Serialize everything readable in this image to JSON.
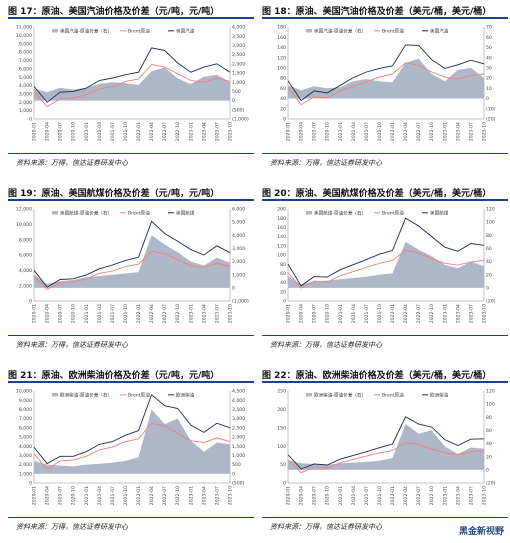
{
  "watermark": "黑金新视野",
  "colors": {
    "spread": "#aeb6c8",
    "brent": "#f08080",
    "product": "#1a2b4a"
  },
  "charts": [
    {
      "title": "图 17：原油、美国汽油价格及价差（元/吨，元/吨）",
      "source": "资料来源：万得，信达证券研发中心",
      "legend": [
        "美国汽油-原油价差（右）",
        "Brent原油",
        "美国汽油"
      ],
      "left_ticks": [
        "0",
        "1,000",
        "2,000",
        "3,000",
        "4,000",
        "5,000",
        "6,000",
        "7,000",
        "8,000",
        "9,000",
        "10,000",
        "11,000"
      ],
      "right_ticks": [
        "(1,000)",
        "(500)",
        "0",
        "500",
        "1,000",
        "1,500",
        "2,000",
        "2,500",
        "3,000",
        "3,500",
        "4,000"
      ],
      "x_ticks": [
        "2020-01",
        "2020-04",
        "2020-07",
        "2020-10",
        "2021-01",
        "2021-04",
        "2021-07",
        "2021-10",
        "2022-01",
        "2022-04",
        "2022-07",
        "2022-10",
        "2023-01",
        "2023-04",
        "2023-07",
        "2023-10"
      ]
    },
    {
      "title": "图 18：原油、美国汽油价格及价差（美元/桶，美元/桶）",
      "source": "资料来源：万得，信达证券研发中心",
      "legend": [
        "美国汽油-原油价差（右）",
        "Brent原油",
        "美国汽油"
      ],
      "left_ticks": [
        "0",
        "20",
        "40",
        "60",
        "80",
        "100",
        "120",
        "140",
        "160",
        "180"
      ],
      "right_ticks": [
        "(20)",
        "(10)",
        "0",
        "10",
        "20",
        "30",
        "40",
        "50",
        "60",
        "70"
      ],
      "x_ticks": [
        "2020-01",
        "2020-04",
        "2020-07",
        "2020-10",
        "2021-01",
        "2021-04",
        "2021-07",
        "2021-10",
        "2022-01",
        "2022-04",
        "2022-07",
        "2022-10",
        "2023-01",
        "2023-04",
        "2023-07",
        "2023-10"
      ]
    },
    {
      "title": "图 19：原油、美国航煤价格及价差（元/吨，元/吨）",
      "source": "资料来源：万得，信达证券研发中心",
      "legend": [
        "美国航煤-原油价差（右）",
        "Brent原油",
        "美国航煤"
      ],
      "left_ticks": [
        "0",
        "2,000",
        "4,000",
        "6,000",
        "8,000",
        "10,000",
        "12,000"
      ],
      "right_ticks": [
        "(1,000)",
        "0",
        "1,000",
        "2,000",
        "3,000",
        "4,000",
        "5,000",
        "6,000"
      ],
      "x_ticks": [
        "2020-01",
        "2020-04",
        "2020-07",
        "2020-10",
        "2021-01",
        "2021-04",
        "2021-07",
        "2021-10",
        "2022-01",
        "2022-04",
        "2022-07",
        "2022-10",
        "2023-01",
        "2023-04",
        "2023-07",
        "2023-10"
      ]
    },
    {
      "title": "图 20：原油、美国航煤价格及价差（美元/桶，美元/桶）",
      "source": "资料来源：万得，信达证券研发中心",
      "legend": [
        "美国航煤-原油价差（右）",
        "Brent原油",
        "美国航煤"
      ],
      "left_ticks": [
        "0",
        "20",
        "40",
        "60",
        "80",
        "100",
        "120",
        "140",
        "160",
        "180",
        "200"
      ],
      "right_ticks": [
        "(20)",
        "0",
        "20",
        "40",
        "60",
        "80",
        "100",
        "120"
      ],
      "x_ticks": [
        "2020-01",
        "2020-04",
        "2020-07",
        "2020-10",
        "2021-01",
        "2021-04",
        "2021-07",
        "2021-10",
        "2022-01",
        "2022-04",
        "2022-07",
        "2022-10",
        "2023-01",
        "2023-04",
        "2023-07",
        "2023-10"
      ]
    },
    {
      "title": "图 21：原油、欧洲柴油价格及价差（元/吨，元/吨）",
      "source": "资料来源：万得，信达证券研发中心",
      "legend": [
        "欧洲柴油-原油价差（右）",
        "Brent原油",
        "欧洲柴油"
      ],
      "left_ticks": [
        "0",
        "1,000",
        "2,000",
        "3,000",
        "4,000",
        "5,000",
        "6,000",
        "7,000",
        "8,000",
        "9,000",
        "10,000"
      ],
      "right_ticks": [
        "(500)",
        "0",
        "500",
        "1,000",
        "1,500",
        "2,000",
        "2,500",
        "3,000",
        "3,500",
        "4,000",
        "4,500"
      ],
      "x_ticks": [
        "2020-01",
        "2020-04",
        "2020-07",
        "2020-10",
        "2021-01",
        "2021-04",
        "2021-07",
        "2021-10",
        "2022-01",
        "2022-04",
        "2022-07",
        "2022-10",
        "2023-01",
        "2023-04",
        "2023-07",
        "2023-10"
      ]
    },
    {
      "title": "图 22：原油、欧洲柴油价格及价差（美元/桶，美元/桶）",
      "source": "资料来源：万得，信达证券研发中心",
      "legend": [
        "欧洲柴油-原油价差（右）",
        "Brent原油",
        "欧洲柴油"
      ],
      "left_ticks": [
        "0",
        "50",
        "100",
        "150",
        "200",
        "250"
      ],
      "right_ticks": [
        "(20)",
        "0",
        "20",
        "40",
        "60",
        "80",
        "100",
        "120"
      ],
      "x_ticks": [
        "2020-01",
        "2020-04",
        "2020-07",
        "2020-10",
        "2021-01",
        "2021-04",
        "2021-07",
        "2021-10",
        "2022-01",
        "2022-04",
        "2022-07",
        "2022-10",
        "2023-01",
        "2023-04",
        "2023-07",
        "2023-10"
      ]
    }
  ],
  "chart_data": [
    {
      "type": "area",
      "title": "图 17：原油、美国汽油价格及价差（元/吨，元/吨）",
      "x": [
        "2020-01",
        "2020-04",
        "2020-07",
        "2020-10",
        "2021-01",
        "2021-04",
        "2021-07",
        "2021-10",
        "2022-01",
        "2022-04",
        "2022-07",
        "2022-10",
        "2023-01",
        "2023-04",
        "2023-07",
        "2023-10"
      ],
      "series": [
        {
          "name": "美国汽油-原油价差（右）",
          "axis": "right",
          "values": [
            650,
            450,
            700,
            600,
            700,
            900,
            1000,
            950,
            850,
            1600,
            1800,
            1200,
            900,
            1300,
            1400,
            1000
          ]
        },
        {
          "name": "Brent原油",
          "axis": "left",
          "values": [
            3200,
            1500,
            2400,
            2500,
            2900,
            3600,
            3900,
            4500,
            4800,
            6500,
            6200,
            5400,
            4600,
            4400,
            4900,
            4500
          ]
        },
        {
          "name": "美国汽油",
          "axis": "left",
          "values": [
            3900,
            2000,
            3200,
            3300,
            3700,
            4600,
            4900,
            5300,
            5600,
            8500,
            8200,
            6700,
            5600,
            6200,
            6600,
            5600
          ]
        }
      ],
      "ylim_left": [
        0,
        11000
      ],
      "ylim_right": [
        -1000,
        4000
      ]
    },
    {
      "type": "area",
      "title": "图 18：原油、美国汽油价格及价差（美元/桶，美元/桶）",
      "x": [
        "2020-01",
        "2020-04",
        "2020-07",
        "2020-10",
        "2021-01",
        "2021-04",
        "2021-07",
        "2021-10",
        "2022-01",
        "2022-04",
        "2022-07",
        "2022-10",
        "2023-01",
        "2023-04",
        "2023-07",
        "2023-10"
      ],
      "series": [
        {
          "name": "美国汽油-原油价差（右）",
          "axis": "right",
          "values": [
            13,
            8,
            12,
            10,
            11,
            17,
            19,
            17,
            16,
            35,
            39,
            24,
            17,
            28,
            30,
            20
          ]
        },
        {
          "name": "Brent原油",
          "axis": "left",
          "values": [
            62,
            28,
            43,
            41,
            55,
            64,
            73,
            82,
            88,
            110,
            105,
            92,
            82,
            78,
            85,
            88
          ]
        },
        {
          "name": "美国汽油",
          "axis": "left",
          "values": [
            75,
            36,
            55,
            51,
            66,
            81,
            92,
            99,
            104,
            145,
            144,
            116,
            99,
            106,
            115,
            108
          ]
        }
      ],
      "ylim_left": [
        0,
        180
      ],
      "ylim_right": [
        -20,
        70
      ]
    },
    {
      "type": "area",
      "title": "图 19：原油、美国航煤价格及价差（元/吨，元/吨）",
      "x": [
        "2020-01",
        "2020-04",
        "2020-07",
        "2020-10",
        "2021-01",
        "2021-04",
        "2021-07",
        "2021-10",
        "2022-01",
        "2022-04",
        "2022-07",
        "2022-10",
        "2023-01",
        "2023-04",
        "2023-07",
        "2023-10"
      ],
      "series": [
        {
          "name": "美国航煤-原油价差（右）",
          "axis": "right",
          "values": [
            1000,
            300,
            500,
            600,
            800,
            900,
            1000,
            1100,
            1200,
            4000,
            3300,
            2700,
            2000,
            1700,
            2300,
            1900
          ]
        },
        {
          "name": "Brent原油",
          "axis": "left",
          "values": [
            3200,
            1500,
            2400,
            2500,
            2900,
            3600,
            3900,
            4500,
            4800,
            6500,
            6200,
            5400,
            4600,
            4400,
            4900,
            4500
          ]
        },
        {
          "name": "美国航煤",
          "axis": "left",
          "values": [
            4000,
            1800,
            2800,
            2900,
            3400,
            4200,
            4700,
            5300,
            5700,
            10400,
            8800,
            7800,
            6700,
            6000,
            7200,
            6300
          ]
        }
      ],
      "ylim_left": [
        0,
        12000
      ],
      "ylim_right": [
        -1000,
        6000
      ]
    },
    {
      "type": "area",
      "title": "图 20：原油、美国航煤价格及价差（美元/桶，美元/桶）",
      "x": [
        "2020-01",
        "2020-04",
        "2020-07",
        "2020-10",
        "2021-01",
        "2021-04",
        "2021-07",
        "2021-10",
        "2022-01",
        "2022-04",
        "2022-07",
        "2022-10",
        "2023-01",
        "2023-04",
        "2023-07",
        "2023-10"
      ],
      "series": [
        {
          "name": "美国航煤-原油价差（右）",
          "axis": "right",
          "values": [
            18,
            5,
            10,
            11,
            13,
            15,
            17,
            20,
            22,
            70,
            58,
            48,
            35,
            30,
            40,
            33
          ]
        },
        {
          "name": "Brent原油",
          "axis": "left",
          "values": [
            62,
            28,
            43,
            41,
            55,
            64,
            73,
            82,
            88,
            110,
            105,
            92,
            82,
            78,
            85,
            88
          ]
        },
        {
          "name": "美国航煤",
          "axis": "left",
          "values": [
            80,
            33,
            53,
            52,
            68,
            79,
            90,
            102,
            110,
            180,
            163,
            140,
            117,
            108,
            125,
            121
          ]
        }
      ],
      "ylim_left": [
        0,
        200
      ],
      "ylim_right": [
        -20,
        120
      ]
    },
    {
      "type": "area",
      "title": "图 21：原油、欧洲柴油价格及价差（元/吨，元/吨）",
      "x": [
        "2020-01",
        "2020-04",
        "2020-07",
        "2020-10",
        "2021-01",
        "2021-04",
        "2021-07",
        "2021-10",
        "2022-01",
        "2022-04",
        "2022-07",
        "2022-10",
        "2023-01",
        "2023-04",
        "2023-07",
        "2023-10"
      ],
      "series": [
        {
          "name": "欧洲柴油-原油价差（右）",
          "axis": "right",
          "values": [
            700,
            500,
            450,
            400,
            500,
            550,
            600,
            700,
            900,
            3500,
            2700,
            3000,
            1800,
            1200,
            1700,
            1600
          ]
        },
        {
          "name": "Brent原油",
          "axis": "left",
          "values": [
            3200,
            1500,
            2400,
            2500,
            2900,
            3600,
            3900,
            4500,
            4800,
            6500,
            6200,
            5400,
            4600,
            4400,
            4900,
            4500
          ]
        },
        {
          "name": "欧洲柴油",
          "axis": "left",
          "values": [
            3900,
            2100,
            2900,
            2900,
            3400,
            4200,
            4500,
            5200,
            5700,
            9600,
            8400,
            8100,
            6300,
            5500,
            6500,
            6000
          ]
        }
      ],
      "ylim_left": [
        0,
        10000
      ],
      "ylim_right": [
        -500,
        4500
      ]
    },
    {
      "type": "area",
      "title": "图 22：原油、欧洲柴油价格及价差（美元/桶，美元/桶）",
      "x": [
        "2020-01",
        "2020-04",
        "2020-07",
        "2020-10",
        "2021-01",
        "2021-04",
        "2021-07",
        "2021-10",
        "2022-01",
        "2022-04",
        "2022-07",
        "2022-10",
        "2023-01",
        "2023-04",
        "2023-07",
        "2023-10"
      ],
      "series": [
        {
          "name": "欧洲柴油-原油价差（右）",
          "axis": "right",
          "values": [
            15,
            10,
            9,
            8,
            10,
            11,
            12,
            14,
            18,
            70,
            55,
            60,
            36,
            24,
            34,
            32
          ]
        },
        {
          "name": "Brent原油",
          "axis": "left",
          "values": [
            62,
            28,
            43,
            41,
            55,
            64,
            73,
            82,
            88,
            110,
            105,
            92,
            82,
            78,
            85,
            88
          ]
        },
        {
          "name": "欧洲柴油",
          "axis": "left",
          "values": [
            77,
            38,
            52,
            49,
            65,
            75,
            85,
            96,
            106,
            180,
            160,
            152,
            118,
            102,
            119,
            120
          ]
        }
      ],
      "ylim_left": [
        0,
        250
      ],
      "ylim_right": [
        -20,
        120
      ]
    }
  ]
}
